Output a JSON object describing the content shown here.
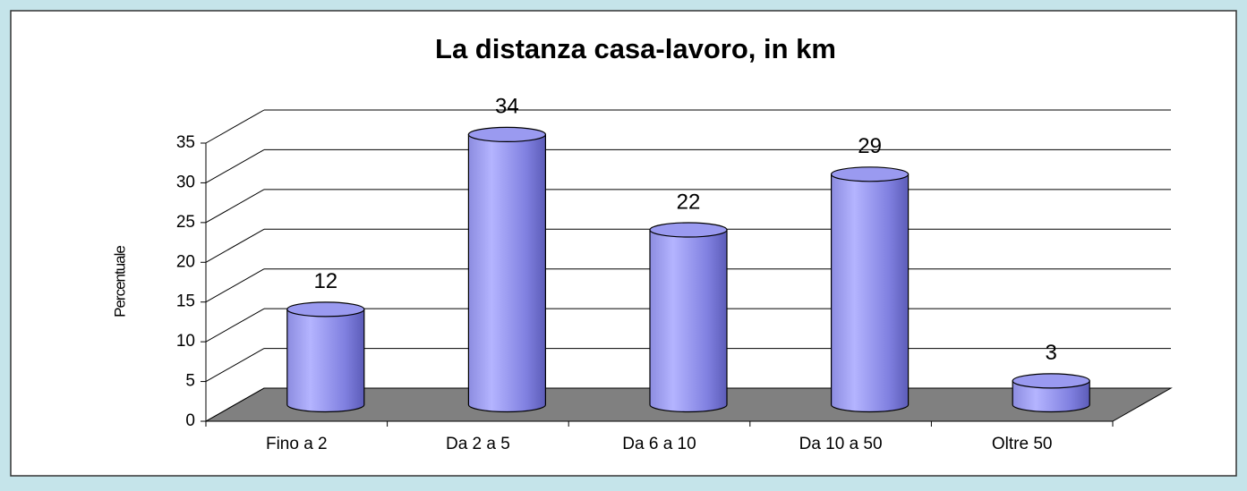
{
  "chart_data": {
    "type": "bar",
    "title": "La distanza casa-lavoro, in km",
    "y_label": "Percentuale",
    "categories": [
      "Fino a 2",
      "Da 2 a 5",
      "Da 6 a 10",
      "Da 10 a 50",
      "Oltre 50"
    ],
    "values": [
      12,
      34,
      22,
      29,
      3
    ],
    "color": "#9999ee",
    "ylim": [
      0,
      35
    ],
    "yticks": [
      0,
      5,
      10,
      15,
      20,
      25,
      30,
      35
    ],
    "grid": true
  }
}
